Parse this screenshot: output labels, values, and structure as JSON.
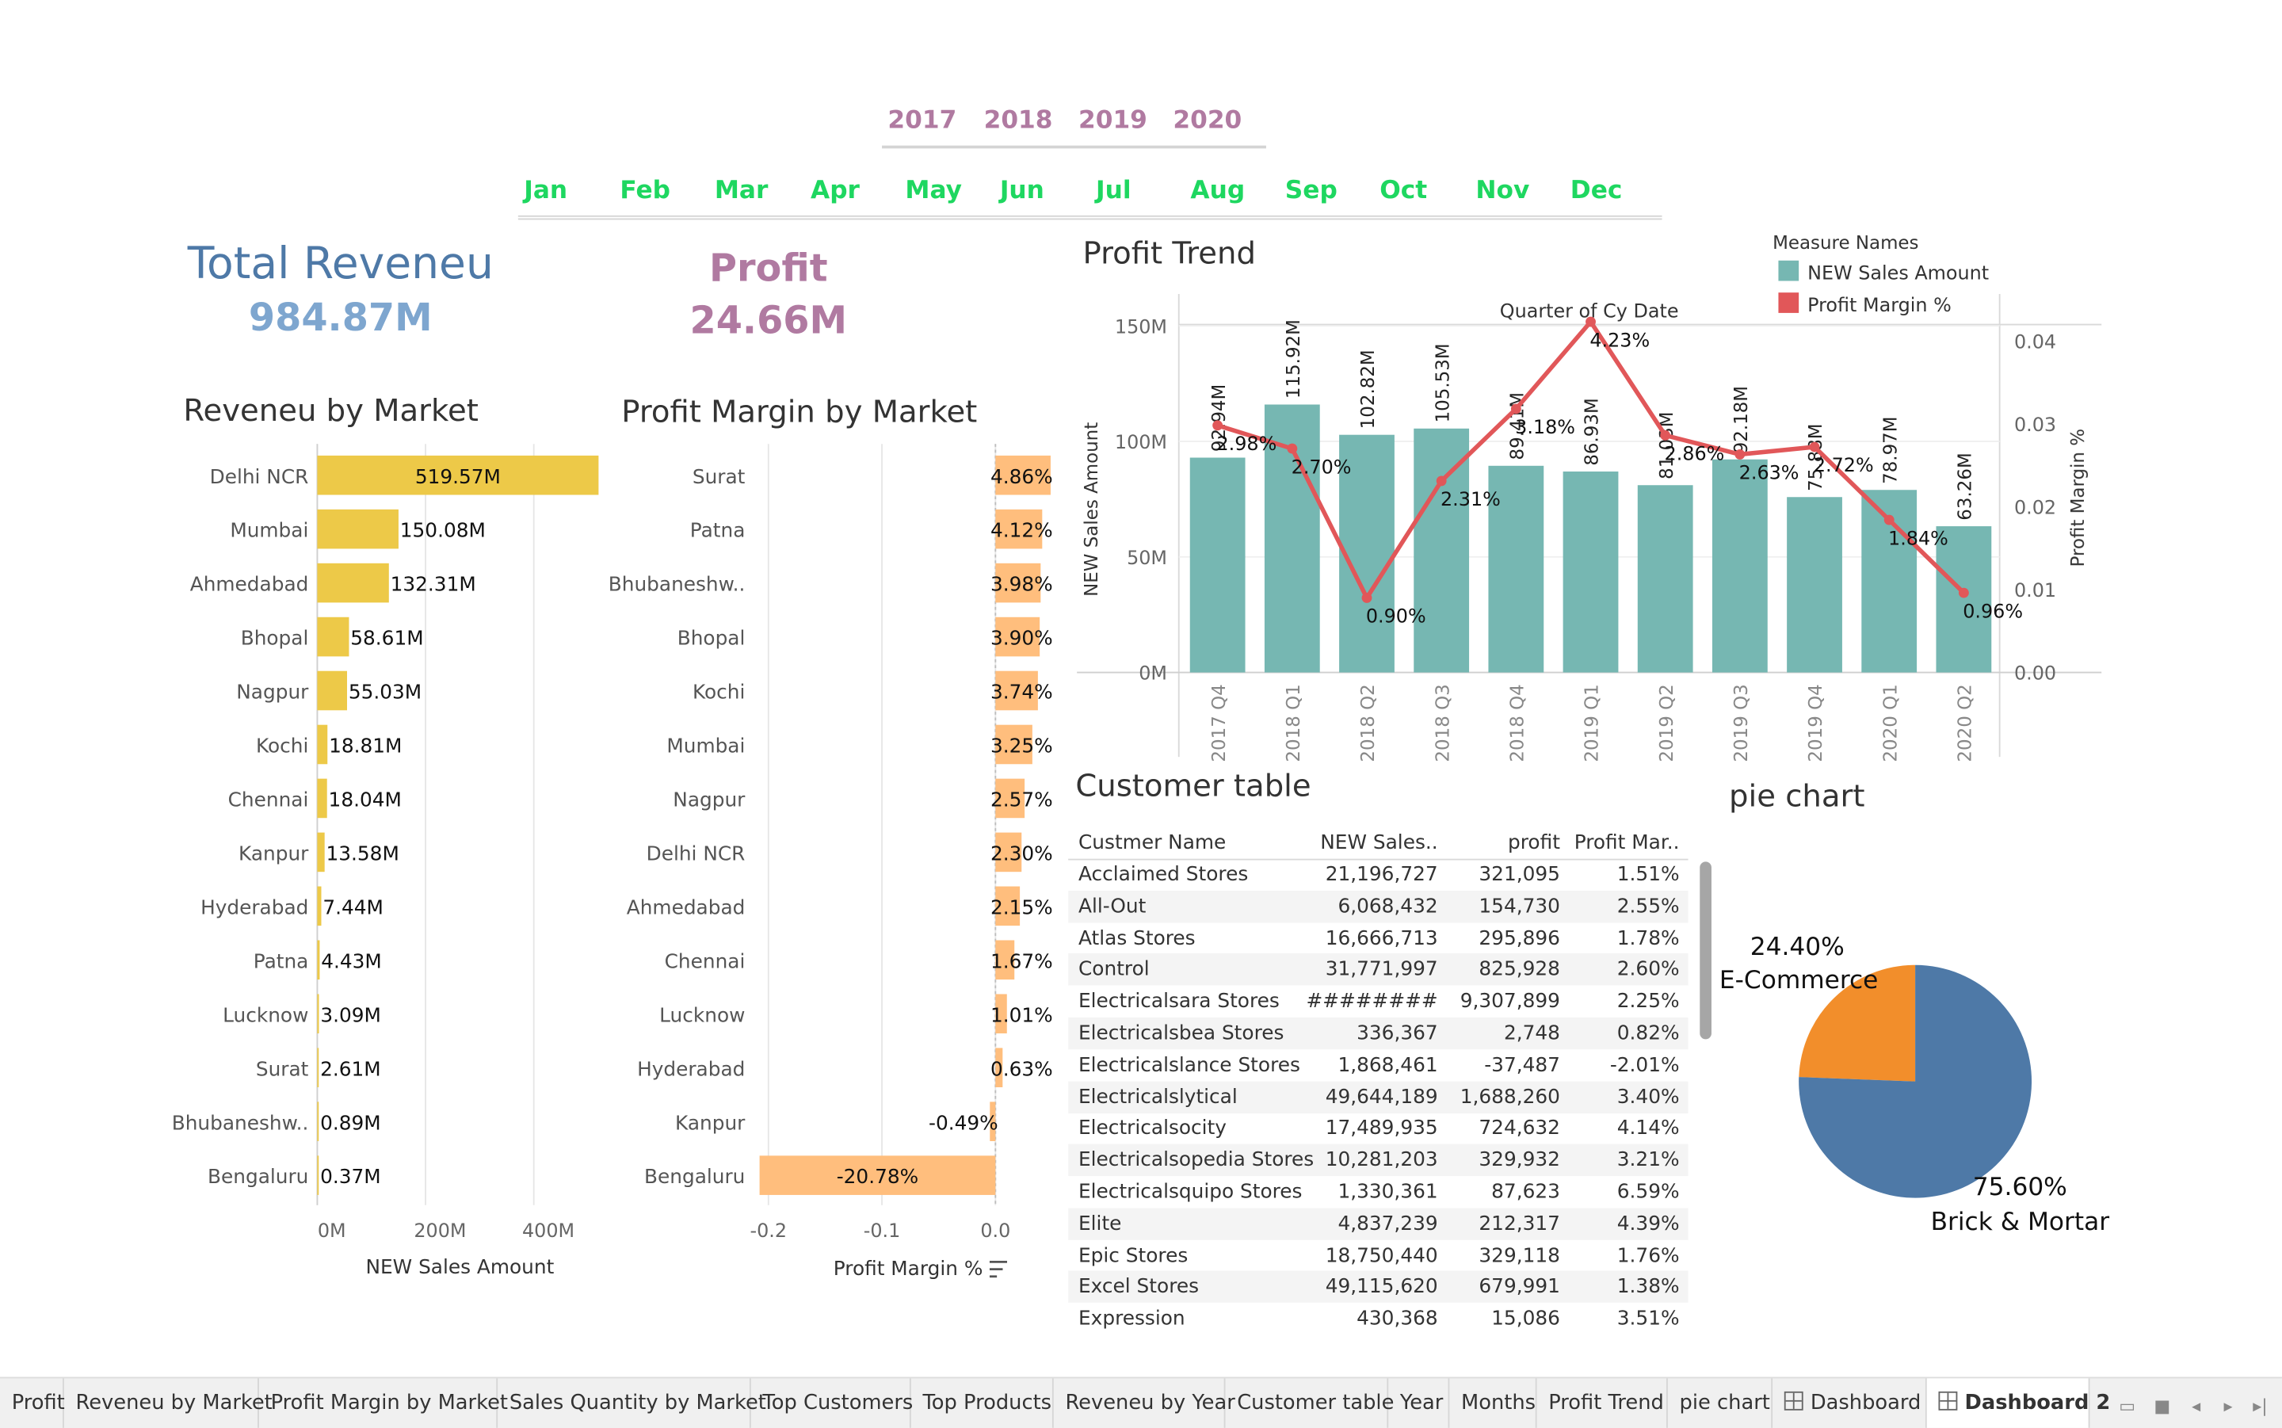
{
  "filters": {
    "years": [
      "2017",
      "2018",
      "2019",
      "2020"
    ],
    "months": [
      "Jan",
      "Feb",
      "Mar",
      "Apr",
      "May",
      "Jun",
      "Jul",
      "Aug",
      "Sep",
      "Oct",
      "Nov",
      "Dec"
    ]
  },
  "kpis": {
    "revenue_title": "Total Reveneu",
    "revenue_value": "984.87M",
    "profit_title": "Profit",
    "profit_value": "24.66M"
  },
  "colors": {
    "revenue_title": "#4e79a7",
    "revenue_value": "#7ea6cf",
    "profit": "#b07aa1",
    "bar_yellow": "#edc948",
    "bar_orange": "#ffbe7d",
    "teal": "#76b7b2",
    "red": "#e15759",
    "pie_blue": "#4e79a7",
    "pie_orange": "#f28e2b"
  },
  "chart_data": [
    {
      "type": "bar",
      "title": "Reveneu by Market",
      "xlabel": "NEW Sales Amount",
      "categories": [
        "Delhi NCR",
        "Mumbai",
        "Ahmedabad",
        "Bhopal",
        "Nagpur",
        "Kochi",
        "Chennai",
        "Kanpur",
        "Hyderabad",
        "Patna",
        "Lucknow",
        "Surat",
        "Bhubaneshw..",
        "Bengaluru"
      ],
      "values": [
        519.57,
        150.08,
        132.31,
        58.61,
        55.03,
        18.81,
        18.04,
        13.58,
        7.44,
        4.43,
        3.09,
        2.61,
        0.89,
        0.37
      ],
      "labels": [
        "519.57M",
        "150.08M",
        "132.31M",
        "58.61M",
        "55.03M",
        "18.81M",
        "18.04M",
        "13.58M",
        "7.44M",
        "4.43M",
        "3.09M",
        "2.61M",
        "0.89M",
        "0.37M"
      ],
      "ticks": [
        "0M",
        "200M",
        "400M"
      ],
      "tick_values": [
        0,
        200,
        400
      ],
      "xlim": [
        0,
        550
      ]
    },
    {
      "type": "bar",
      "title": "Profit Margin by Market",
      "xlabel": "Profit Margin %",
      "categories": [
        "Surat",
        "Patna",
        "Bhubaneshw..",
        "Bhopal",
        "Kochi",
        "Mumbai",
        "Nagpur",
        "Delhi NCR",
        "Ahmedabad",
        "Chennai",
        "Lucknow",
        "Hyderabad",
        "Kanpur",
        "Bengaluru"
      ],
      "values": [
        4.86,
        4.12,
        3.98,
        3.9,
        3.74,
        3.25,
        2.57,
        2.3,
        2.15,
        1.67,
        1.01,
        0.63,
        -0.49,
        -20.78
      ],
      "labels": [
        "4.86%",
        "4.12%",
        "3.98%",
        "3.90%",
        "3.74%",
        "3.25%",
        "2.57%",
        "2.30%",
        "2.15%",
        "1.67%",
        "1.01%",
        "0.63%",
        "-0.49%",
        "-20.78%"
      ],
      "ticks": [
        "-0.2",
        "-0.1",
        "0.0"
      ],
      "tick_values": [
        -0.2,
        -0.1,
        0.0
      ],
      "xlim": [
        -0.21,
        0.05
      ]
    },
    {
      "type": "bar+line",
      "title": "Profit Trend",
      "xlabel": "Quarter of Cy Date",
      "ylabel": "NEW Sales Amount",
      "y2label": "Profit Margin %",
      "legend_title": "Measure Names",
      "legend": [
        "NEW Sales Amount",
        "Profit Margin %"
      ],
      "categories": [
        "2017 Q4",
        "2018 Q1",
        "2018 Q2",
        "2018 Q3",
        "2018 Q4",
        "2019 Q1",
        "2019 Q2",
        "2019 Q3",
        "2019 Q4",
        "2020 Q1",
        "2020 Q2"
      ],
      "bar_values": [
        92.94,
        115.92,
        102.82,
        105.53,
        89.41,
        86.93,
        81.03,
        92.18,
        75.88,
        78.97,
        63.26
      ],
      "bar_labels": [
        "92.94M",
        "115.92M",
        "102.82M",
        "105.53M",
        "89.41M",
        "86.93M",
        "81.03M",
        "92.18M",
        "75.88M",
        "78.97M",
        "63.26M"
      ],
      "line_values": [
        0.0298,
        0.027,
        0.009,
        0.0231,
        0.0318,
        0.0423,
        0.0286,
        0.0263,
        0.0272,
        0.0184,
        0.0096
      ],
      "line_labels": [
        "2.98%",
        "2.70%",
        "0.90%",
        "2.31%",
        "3.18%",
        "4.23%",
        "2.86%",
        "2.63%",
        "2.72%",
        "1.84%",
        "0.96%"
      ],
      "yticks": [
        "0M",
        "50M",
        "100M",
        "150M"
      ],
      "ytick_values": [
        0,
        50,
        100,
        150
      ],
      "y2ticks": [
        "0.00",
        "0.01",
        "0.02",
        "0.03",
        "0.04"
      ],
      "y2tick_values": [
        0,
        0.01,
        0.02,
        0.03,
        0.04
      ],
      "ylim": [
        0,
        165
      ],
      "y2lim": [
        0,
        0.046
      ]
    },
    {
      "type": "pie",
      "title": "pie chart",
      "slices": [
        {
          "label": "E-Commerce",
          "value": 24.4,
          "pct": "24.40%"
        },
        {
          "label": "Brick & Mortar",
          "value": 75.6,
          "pct": "75.60%"
        }
      ]
    }
  ],
  "customer_table": {
    "title": "Customer table",
    "headers": [
      "Custmer Name",
      "NEW Sales..",
      "profit",
      "Profit Mar.."
    ],
    "rows": [
      [
        "Acclaimed Stores",
        "21,196,727",
        "321,095",
        "1.51%"
      ],
      [
        "All-Out",
        "6,068,432",
        "154,730",
        "2.55%"
      ],
      [
        "Atlas Stores",
        "16,666,713",
        "295,896",
        "1.78%"
      ],
      [
        "Control",
        "31,771,997",
        "825,928",
        "2.60%"
      ],
      [
        "Electricalsara Stores",
        "########",
        "9,307,899",
        "2.25%"
      ],
      [
        "Electricalsbea Stores",
        "336,367",
        "2,748",
        "0.82%"
      ],
      [
        "Electricalslance Stores",
        "1,868,461",
        "-37,487",
        "-2.01%"
      ],
      [
        "Electricalslytical",
        "49,644,189",
        "1,688,260",
        "3.40%"
      ],
      [
        "Electricalsocity",
        "17,489,935",
        "724,632",
        "4.14%"
      ],
      [
        "Electricalsopedia Stores",
        "10,281,203",
        "329,932",
        "3.21%"
      ],
      [
        "Electricalsquipo Stores",
        "1,330,361",
        "87,623",
        "6.59%"
      ],
      [
        "Elite",
        "4,837,239",
        "212,317",
        "4.39%"
      ],
      [
        "Epic Stores",
        "18,750,440",
        "329,118",
        "1.76%"
      ],
      [
        "Excel Stores",
        "49,115,620",
        "679,991",
        "1.38%"
      ],
      [
        "Expression",
        "430,368",
        "15,086",
        "3.51%"
      ]
    ]
  },
  "tabs": [
    "Profit",
    "Reveneu by Market",
    "Profit Margin by Market",
    "Sales Quantity by Market",
    "Top Customers",
    "Top Products",
    "Reveneu by Year",
    "Customer table",
    "Year",
    "Months",
    "Profit Trend",
    "pie chart",
    "Dashboard",
    "Dashboard 2"
  ],
  "active_tab": "Dashboard 2"
}
